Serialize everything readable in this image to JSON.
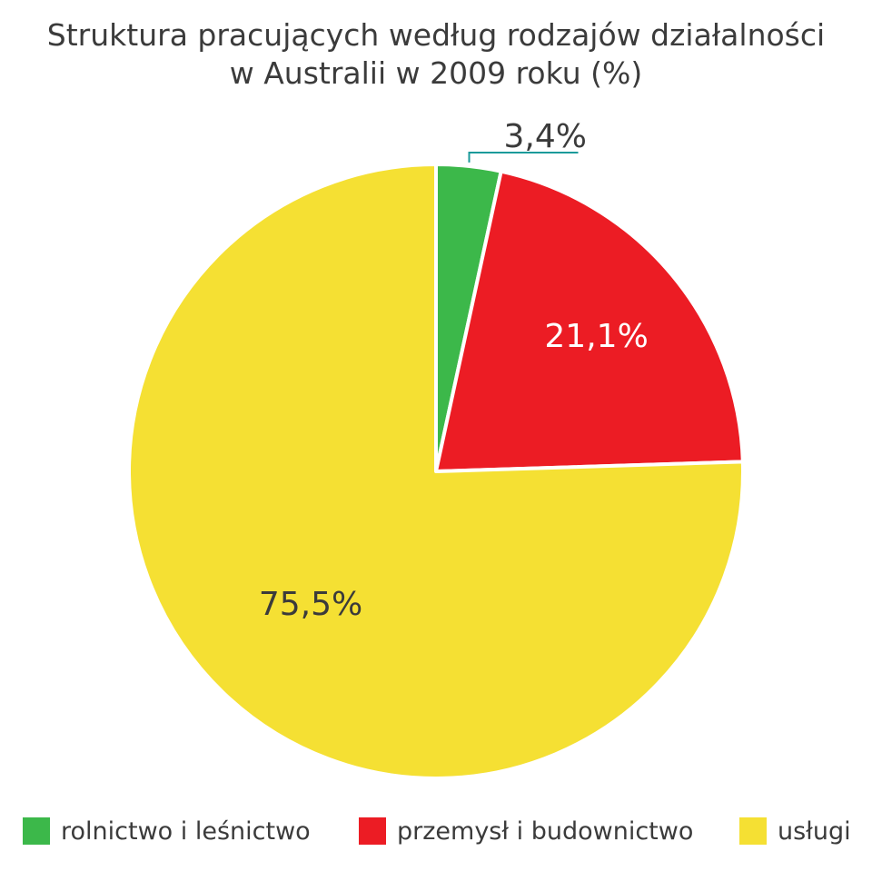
{
  "title": {
    "line1": "Struktura pracujących według rodzajów działalności",
    "line2": "w Australii w 2009 roku (%)"
  },
  "chart_data": {
    "type": "pie",
    "title": "Struktura pracujących według rodzajów działalności w Australii w 2009 roku (%)",
    "categories": [
      "rolnictwo i leśnictwo",
      "przemysł i budownictwo",
      "usługi"
    ],
    "values": [
      3.4,
      21.1,
      75.5
    ],
    "labels": [
      "3,4%",
      "21,1%",
      "75,5%"
    ],
    "colors": [
      "#3cb84a",
      "#ec1c24",
      "#f5e033"
    ],
    "label_colors": [
      "#3b3b3b",
      "#ffffff",
      "#3b3b3b"
    ],
    "leader_line_color": "#1a9a9a",
    "start": "top",
    "direction": "clockwise",
    "legend_position": "bottom"
  },
  "legend": {
    "items": [
      {
        "label": "rolnictwo i leśnictwo",
        "color": "#3cb84a"
      },
      {
        "label": "przemysł i budownictwo",
        "color": "#ec1c24"
      },
      {
        "label": "usługi",
        "color": "#f5e033"
      }
    ]
  }
}
